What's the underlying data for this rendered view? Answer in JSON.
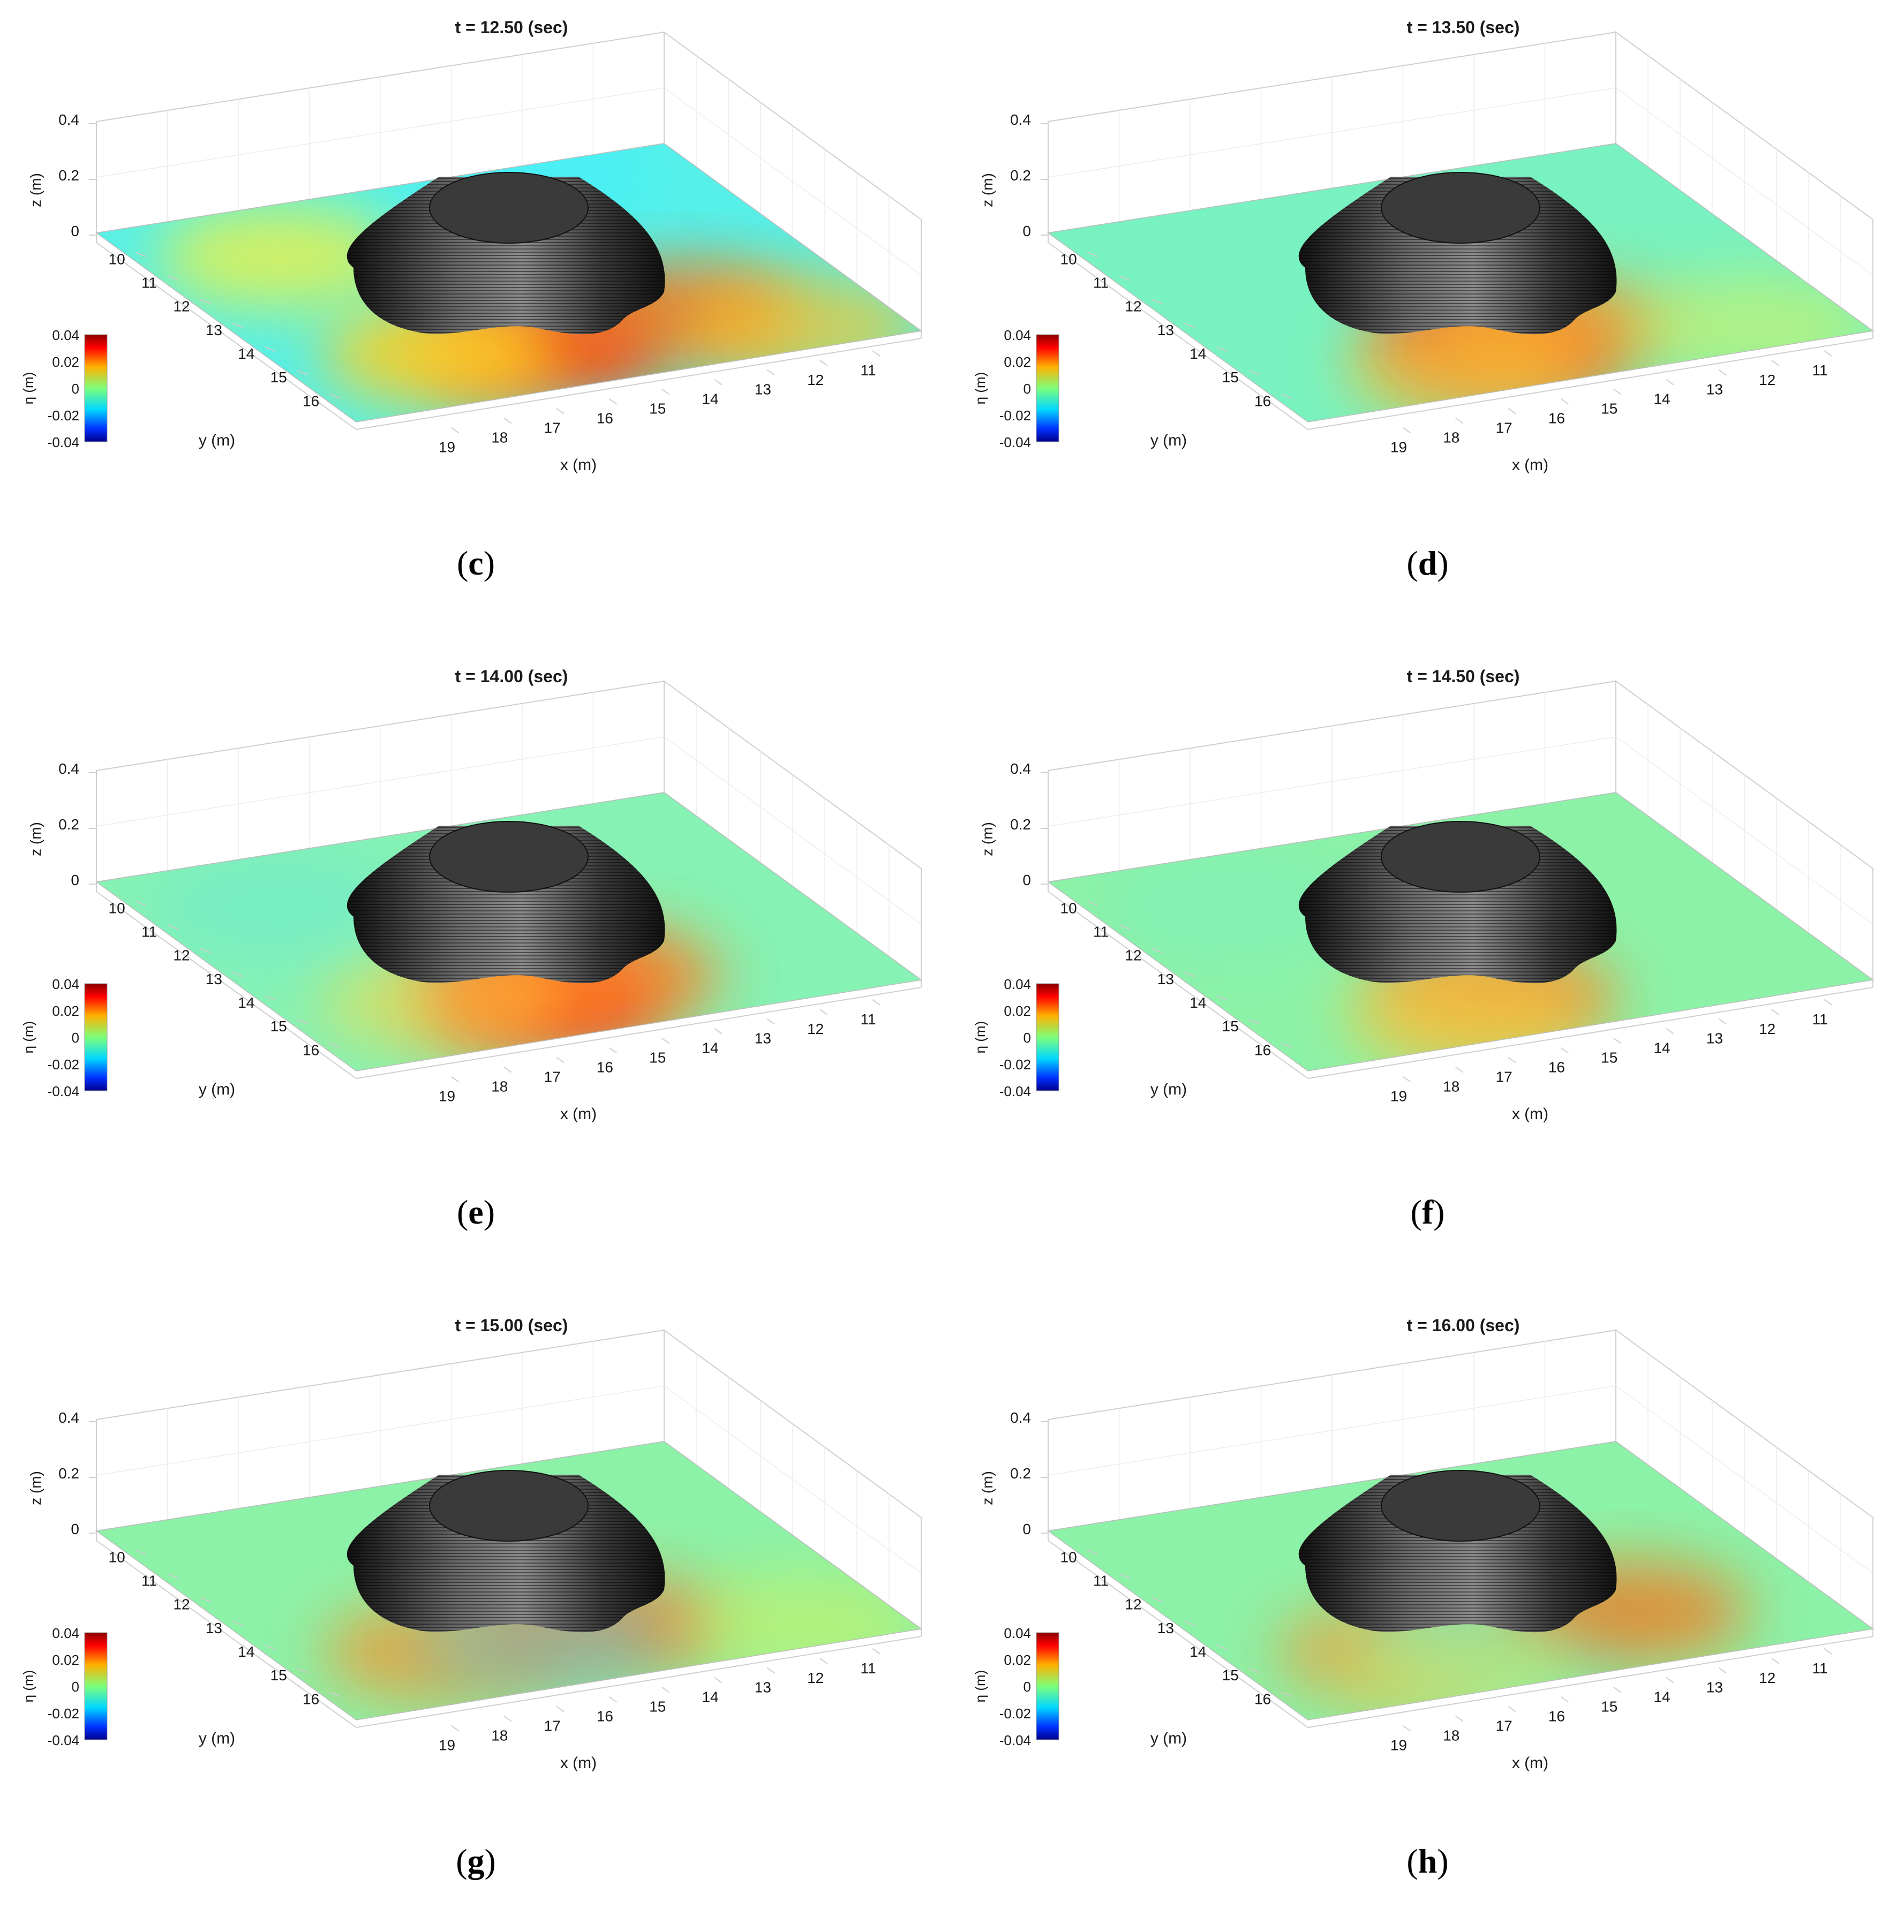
{
  "colors": {
    "frame": "#cfcfcf",
    "grid": "#ececec",
    "text": "#1a1a1a",
    "base_water": "#8cf5a8",
    "cone_top": "#3a3a3a"
  },
  "colorbar": {
    "label": "η (m)",
    "ticks": [
      "0.04",
      "0.02",
      "0",
      "-0.02",
      "-0.04"
    ],
    "colormap": "jet",
    "range": [
      -0.04,
      0.04
    ]
  },
  "axes": {
    "z_label": "z (m)",
    "z_ticks": [
      "0.4",
      "0.2",
      "0"
    ],
    "y_label": "y (m)",
    "y_ticks": [
      "10",
      "11",
      "12",
      "13",
      "14",
      "15",
      "16"
    ],
    "x_label": "x (m)",
    "x_ticks": [
      "19",
      "18",
      "17",
      "16",
      "15",
      "14",
      "13",
      "12",
      "11"
    ]
  },
  "chart_data": [
    {
      "panel": "c",
      "type": "surface",
      "title": "t = 12.50 (sec)",
      "description_id": "c",
      "field": {
        "background": "#57f0e8",
        "blobs": [
          {
            "at": "front",
            "color": "#ff3a10",
            "strength": 0.9
          },
          {
            "at": "front-left",
            "color": "#ffd020",
            "strength": 0.9
          },
          {
            "at": "right",
            "color": "#ff6a10",
            "strength": 0.8
          },
          {
            "at": "right-far",
            "color": "#ffc020",
            "strength": 0.7
          },
          {
            "at": "left",
            "color": "#f2f040",
            "strength": 0.8
          },
          {
            "at": "back",
            "color": "#40f0ff",
            "strength": 0.6
          }
        ]
      }
    },
    {
      "panel": "d",
      "type": "surface",
      "title": "t = 13.50 (sec)",
      "field": {
        "background": "#78f2c0",
        "blobs": [
          {
            "at": "front",
            "color": "#ff2a10",
            "strength": 0.9
          },
          {
            "at": "front-right",
            "color": "#ff9a20",
            "strength": 0.7
          },
          {
            "at": "front-wide",
            "color": "#f4e040",
            "strength": 0.6
          },
          {
            "at": "right-far",
            "color": "#e8f048",
            "strength": 0.5
          }
        ]
      }
    },
    {
      "panel": "e",
      "type": "surface",
      "title": "t = 14.00 (sec)",
      "field": {
        "background": "#86f2b4",
        "blobs": [
          {
            "at": "front",
            "color": "#ff2a10",
            "strength": 0.95
          },
          {
            "at": "front-right",
            "color": "#ff8020",
            "strength": 0.8
          },
          {
            "at": "front-left",
            "color": "#ffd840",
            "strength": 0.6
          },
          {
            "at": "left",
            "color": "#60e6e0",
            "strength": 0.4
          }
        ]
      }
    },
    {
      "panel": "f",
      "type": "surface",
      "title": "t = 14.50 (sec)",
      "field": {
        "background": "#8cf2a8",
        "blobs": [
          {
            "at": "front",
            "color": "#ff7a20",
            "strength": 0.8
          },
          {
            "at": "front-wide",
            "color": "#f8d840",
            "strength": 0.6
          },
          {
            "at": "left",
            "color": "#70ecd0",
            "strength": 0.3
          }
        ]
      }
    },
    {
      "panel": "g",
      "type": "surface",
      "title": "t = 15.00 (sec)",
      "field": {
        "background": "#8cf2a8",
        "blobs": [
          {
            "at": "front-left",
            "color": "#ff8a20",
            "strength": 0.7
          },
          {
            "at": "front-right",
            "color": "#ff6a20",
            "strength": 0.7
          },
          {
            "at": "front",
            "color": "#40d8ff",
            "strength": 0.4
          },
          {
            "at": "right-far",
            "color": "#d8f050",
            "strength": 0.5
          }
        ]
      }
    },
    {
      "panel": "h",
      "type": "surface",
      "title": "t = 16.00 (sec)",
      "field": {
        "background": "#8cf2a8",
        "blobs": [
          {
            "at": "front-left",
            "color": "#ff8a20",
            "strength": 0.6
          },
          {
            "at": "front",
            "color": "#40e8ff",
            "strength": 0.6
          },
          {
            "at": "right",
            "color": "#ff6a10",
            "strength": 0.7
          },
          {
            "at": "front-wide",
            "color": "#e8f050",
            "strength": 0.5
          }
        ]
      }
    }
  ],
  "labels": [
    "(c)",
    "(d)",
    "(e)",
    "(f)",
    "(g)",
    "(h)"
  ],
  "label_letters": [
    "c",
    "d",
    "e",
    "f",
    "g",
    "h"
  ]
}
